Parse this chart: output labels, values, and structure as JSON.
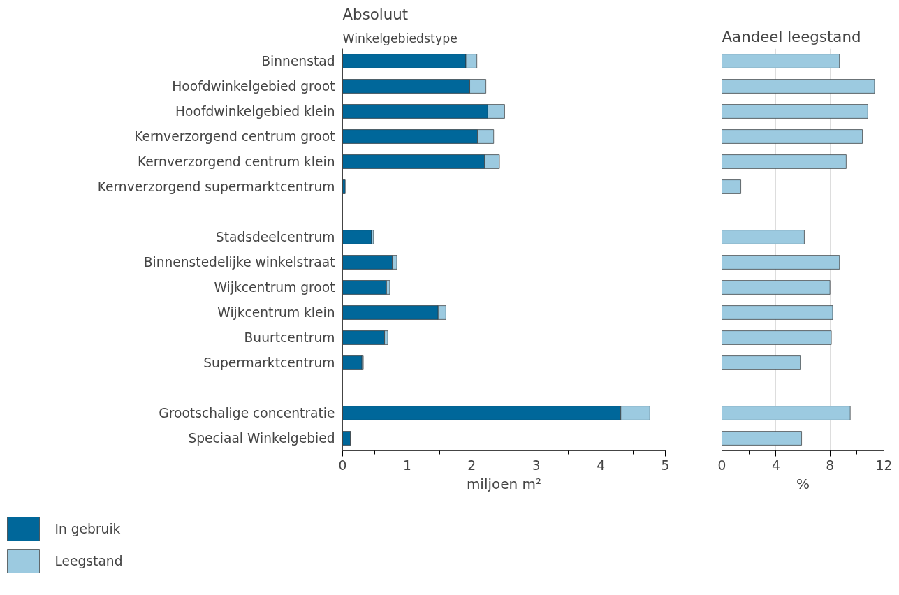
{
  "chart_data": [
    {
      "type": "bar",
      "orientation": "horizontal",
      "stacked": true,
      "title": "Absoluut",
      "ylabel": "Winkelgebiedstype",
      "xlabel": "miljoen m²",
      "categories": [
        "Binnenstad",
        "Hoofdwinkelgebied groot",
        "Hoofdwinkelgebied klein",
        "Kernverzorgend centrum groot",
        "Kernverzorgend centrum klein",
        "Kernverzorgend supermarktcentrum",
        null,
        "Stadsdeelcentrum",
        "Binnenstedelijke winkelstraat",
        "Wijkcentrum groot",
        "Wijkcentrum klein",
        "Buurtcentrum",
        "Supermarktcentrum",
        null,
        "Grootschalige concentratie",
        "Speciaal Winkelgebied"
      ],
      "series": [
        {
          "name": "In gebruik",
          "color": "#00679a",
          "values": [
            1.91,
            1.97,
            2.25,
            2.09,
            2.2,
            0.04,
            null,
            0.45,
            0.77,
            0.68,
            1.48,
            0.65,
            0.3,
            null,
            4.31,
            0.12
          ]
        },
        {
          "name": "Leegstand",
          "color": "#9ccae0",
          "values": [
            0.17,
            0.25,
            0.26,
            0.25,
            0.23,
            null,
            null,
            0.03,
            0.07,
            0.05,
            0.12,
            0.05,
            0.02,
            null,
            0.45,
            0.01
          ]
        }
      ],
      "xlim": [
        0,
        5
      ],
      "xticks": [
        0,
        1,
        2,
        3,
        4,
        5
      ],
      "grid": "x",
      "legend": "bottom left"
    },
    {
      "type": "bar",
      "orientation": "horizontal",
      "title": "Aandeel leegstand",
      "xlabel": "%",
      "categories": [
        null,
        null,
        null,
        null,
        null,
        null,
        null,
        null,
        null,
        null,
        null,
        null,
        null,
        null,
        null,
        null
      ],
      "series": [
        {
          "color": "#9ccae0",
          "values": [
            8.7,
            11.3,
            10.8,
            10.4,
            9.2,
            1.4,
            null,
            6.1,
            8.7,
            8.0,
            8.2,
            8.1,
            5.8,
            null,
            9.5,
            5.9
          ]
        }
      ],
      "xlim": [
        0,
        12
      ],
      "xticks": [
        0,
        4,
        8,
        12
      ],
      "grid": "x",
      "tick_labels": "x"
    }
  ]
}
